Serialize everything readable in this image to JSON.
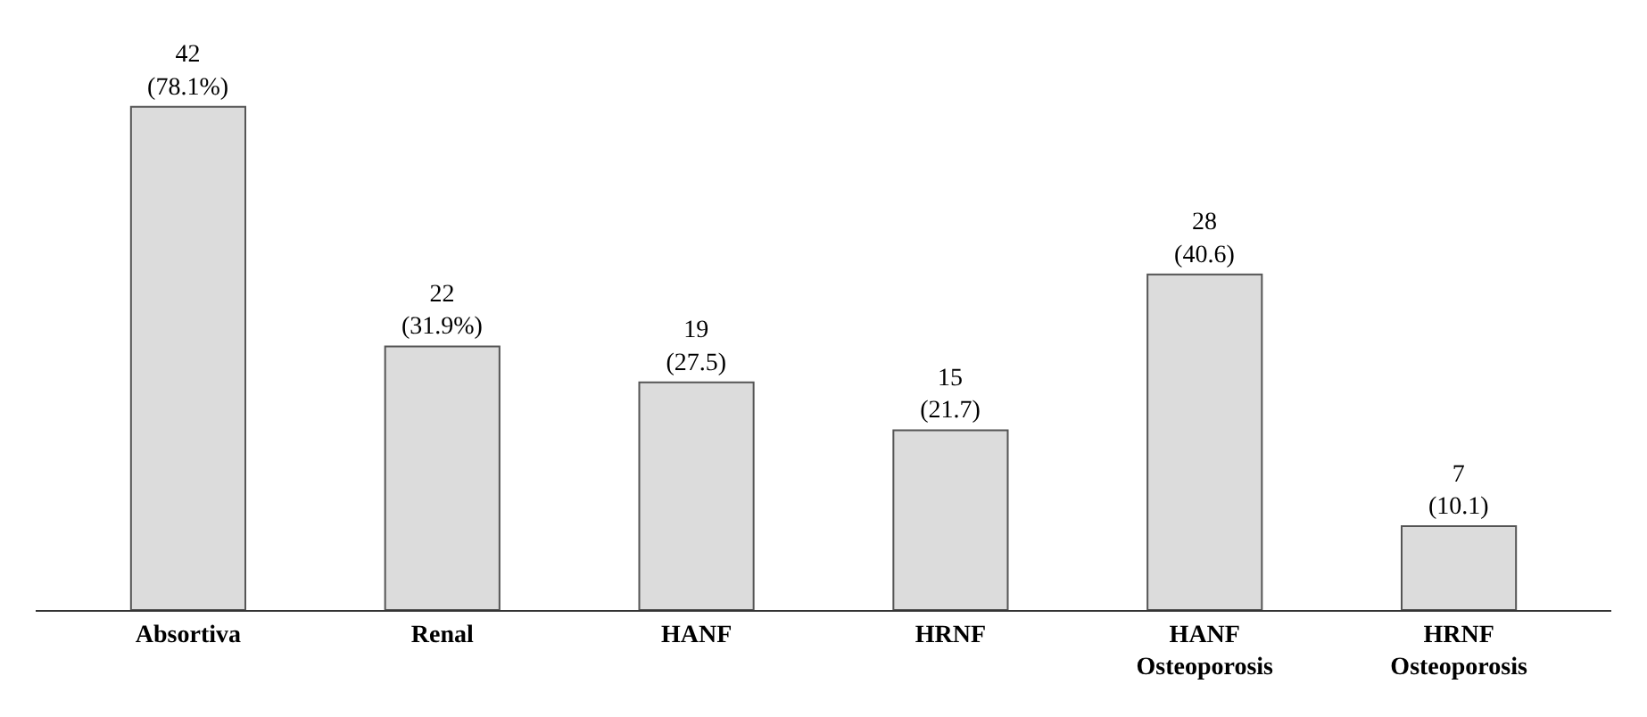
{
  "chart_data": {
    "type": "bar",
    "categories": [
      "Absortiva",
      "Renal",
      "HANF",
      "HRNF",
      "HANF\nOsteoporosis",
      "HRNF\nOsteoporosis"
    ],
    "values": [
      42,
      22,
      19,
      15,
      28,
      7
    ],
    "value_labels": [
      "42\n(78.1%)",
      "22\n(31.9%)",
      "19\n(27.5)",
      "15\n(21.7)",
      "28\n(40.6)",
      "7\n(10.1)"
    ],
    "color": "#dcdcdc"
  }
}
